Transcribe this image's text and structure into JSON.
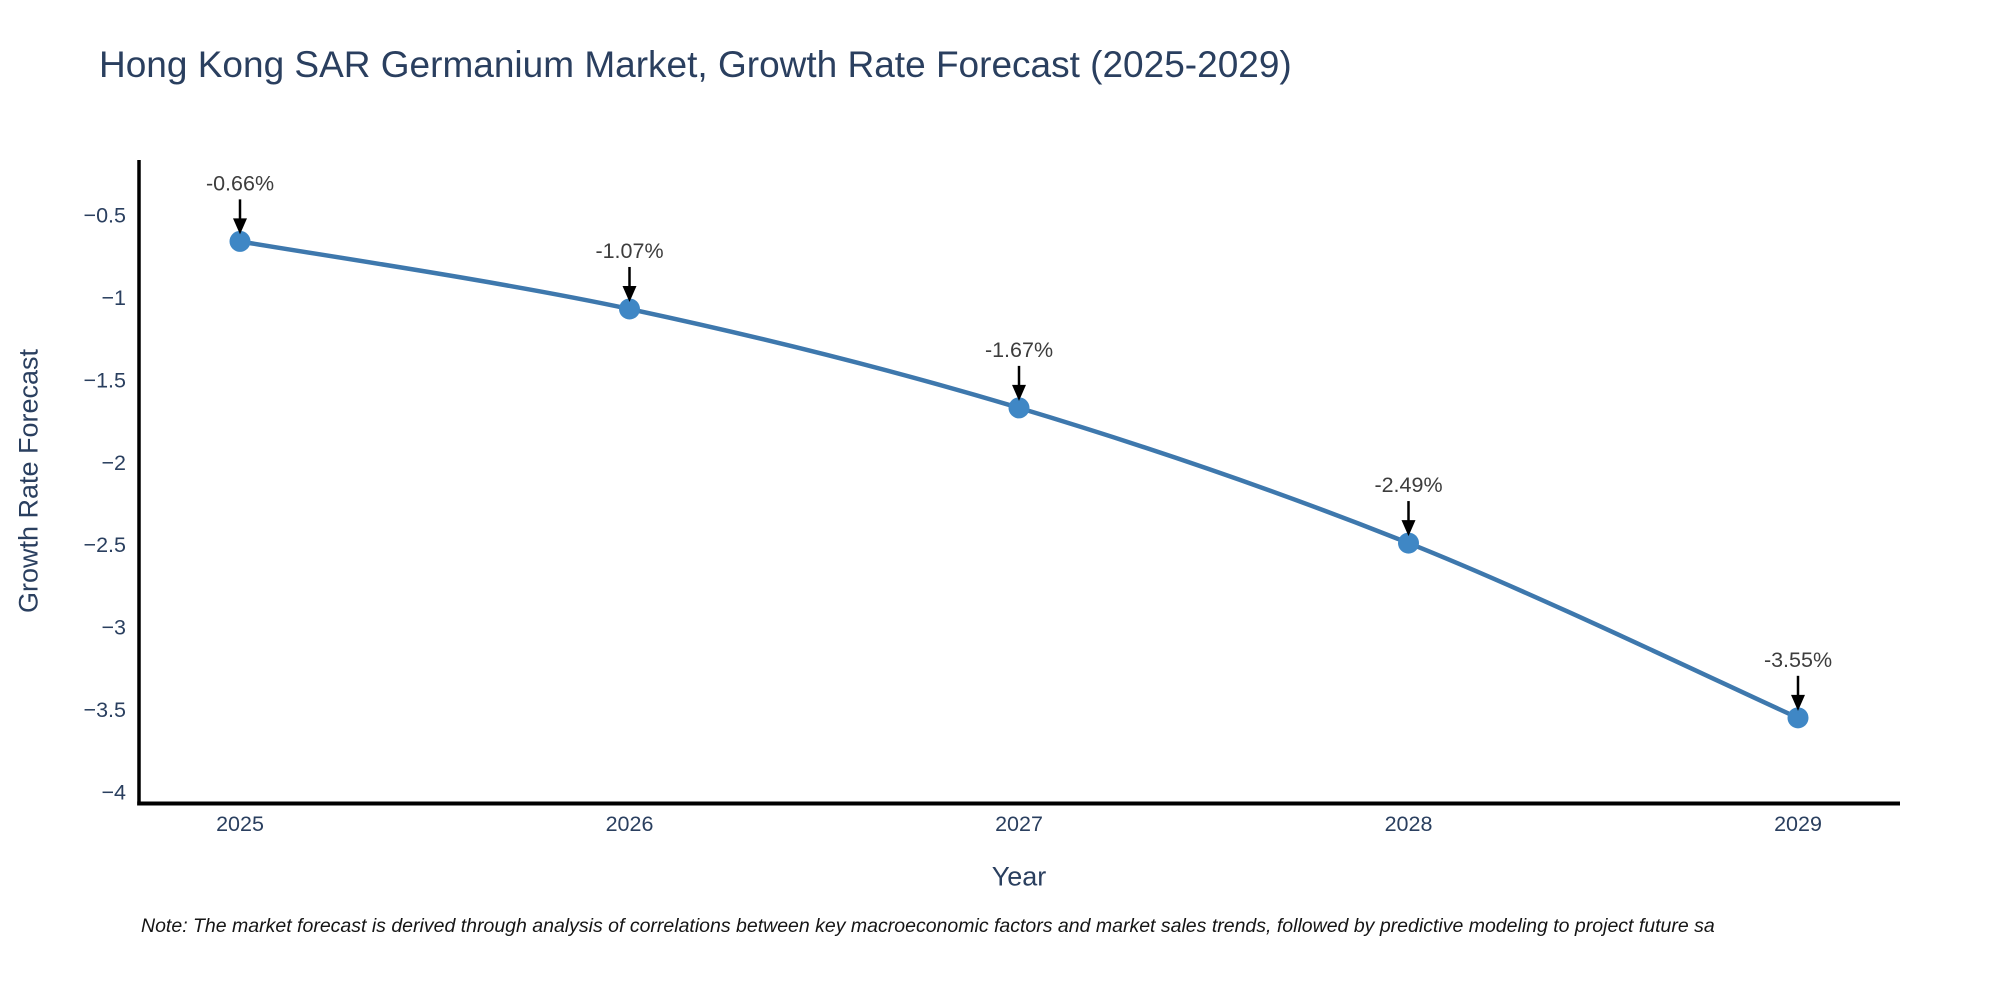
{
  "title": "Hong Kong SAR Germanium Market, Growth Rate Forecast (2025-2029)",
  "note": "Note: The market forecast is derived through analysis of correlations between key macroeconomic factors and market sales trends, followed by predictive modeling to project future sa",
  "chart_data": {
    "type": "line",
    "title": "Hong Kong SAR Germanium Market, Growth Rate Forecast (2025-2029)",
    "xlabel": "Year",
    "ylabel": "Growth Rate Forecast",
    "x": [
      2025,
      2026,
      2027,
      2028,
      2029
    ],
    "values": [
      -0.66,
      -1.07,
      -1.67,
      -2.49,
      -3.55
    ],
    "point_labels": [
      "-0.66%",
      "-1.07%",
      "-1.67%",
      "-2.49%",
      "-3.55%"
    ],
    "xtick_labels": [
      "2025",
      "2026",
      "2027",
      "2028",
      "2029"
    ],
    "ytick_values": [
      -0.5,
      -1,
      -1.5,
      -2,
      -2.5,
      -3,
      -3.5,
      -4
    ],
    "ytick_labels": [
      "−0.5",
      "−1",
      "−1.5",
      "−2",
      "−2.5",
      "−3",
      "−3.5",
      "−4"
    ],
    "line_shape": "spline",
    "grid": false,
    "legend_position": "none",
    "xlim": [
      2024.74,
      2029.26
    ],
    "ylim": [
      -4.05,
      -0.17
    ],
    "colors": {
      "line": "#3e78ad",
      "marker": "#3f87c5",
      "axis_line": "#000000",
      "tick_text": "#2a3f5f",
      "title_text": "#2a3f5f",
      "axis_title_text": "#2a3f5f",
      "annotation_text": "#3d3d3d",
      "annotation_arrow": "#000000",
      "background": "#ffffff"
    }
  }
}
